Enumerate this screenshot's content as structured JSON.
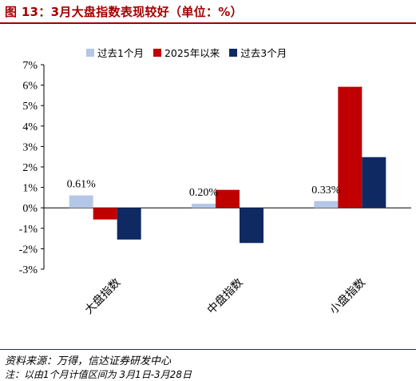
{
  "figure": {
    "title": "图 13：3月大盘指数表现较好（单位：%）",
    "source": "资料来源：万得，信达证券研发中心",
    "note": "注：以由1个月计值区间为 3月1日-3月28日"
  },
  "colors": {
    "title": "#a40000",
    "series": [
      "#b4c7e7",
      "#c00000",
      "#0f2a63"
    ]
  },
  "chart_data": {
    "type": "bar",
    "categories": [
      "大盘指数",
      "中盘指数",
      "小盘指数"
    ],
    "series": [
      {
        "name": "过去1个月",
        "values": [
          0.61,
          0.2,
          0.33
        ]
      },
      {
        "name": "2025年以来",
        "values": [
          -0.57,
          0.88,
          5.92
        ]
      },
      {
        "name": "过去3个月",
        "values": [
          -1.55,
          -1.72,
          2.48
        ]
      }
    ],
    "data_labels": [
      "0.61%",
      "0.20%",
      "0.33%"
    ],
    "ylim": [
      -3,
      7
    ],
    "yticks": [
      "-3%",
      "-2%",
      "-1%",
      "0%",
      "1%",
      "2%",
      "3%",
      "4%",
      "5%",
      "6%",
      "7%"
    ],
    "legend": "top",
    "grid": false
  }
}
